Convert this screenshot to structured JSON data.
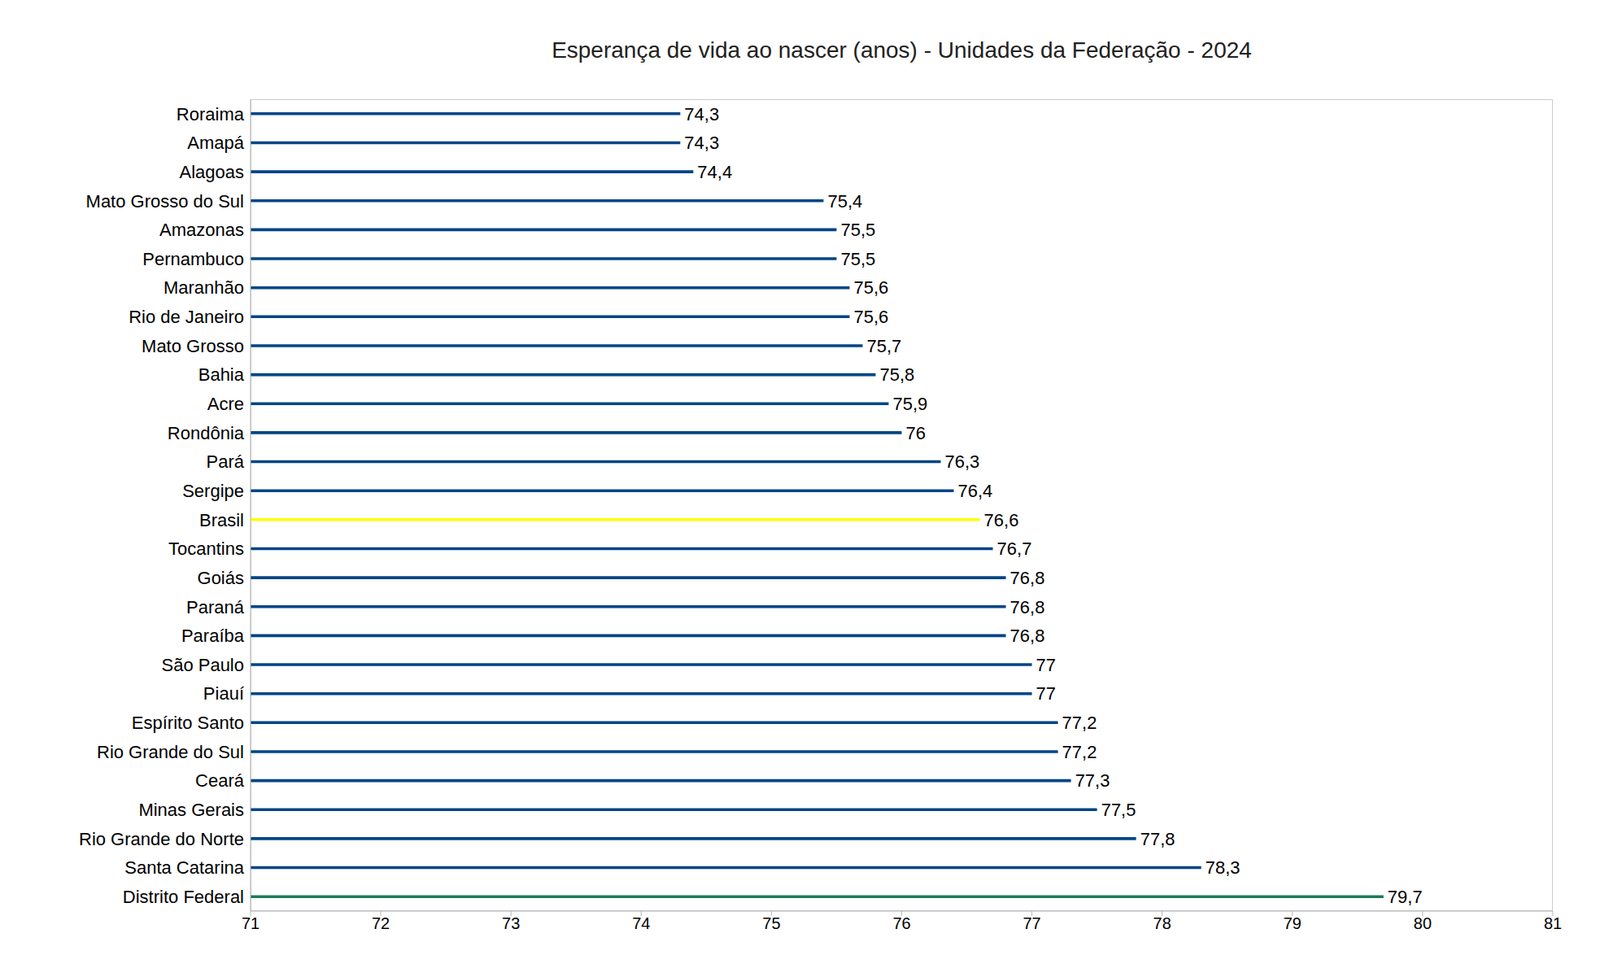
{
  "chart_data": {
    "type": "bar",
    "title": "Esperança de vida ao nascer (anos) - Unidades da Federação - 2024",
    "orientation": "horizontal",
    "categories": [
      "Roraima",
      "Amapá",
      "Alagoas",
      "Mato Grosso do Sul",
      "Amazonas",
      "Pernambuco",
      "Maranhão",
      "Rio de Janeiro",
      "Mato Grosso",
      "Bahia",
      "Acre",
      "Rondônia",
      "Pará",
      "Sergipe",
      "Brasil",
      "Tocantins",
      "Goiás",
      "Paraná",
      "Paraíba",
      "São Paulo",
      "Piauí",
      "Espírito Santo",
      "Rio Grande do Sul",
      "Ceará",
      "Minas Gerais",
      "Rio Grande do Norte",
      "Santa Catarina",
      "Distrito Federal"
    ],
    "values": [
      74.3,
      74.3,
      74.4,
      75.4,
      75.5,
      75.5,
      75.6,
      75.6,
      75.7,
      75.8,
      75.9,
      76,
      76.3,
      76.4,
      76.6,
      76.7,
      76.8,
      76.8,
      76.8,
      77,
      77,
      77.2,
      77.2,
      77.3,
      77.5,
      77.8,
      78.3,
      79.7
    ],
    "value_labels": [
      "74,3",
      "74,3",
      "74,4",
      "75,4",
      "75,5",
      "75,5",
      "75,6",
      "75,6",
      "75,7",
      "75,8",
      "75,9",
      "76",
      "76,3",
      "76,4",
      "76,6",
      "76,7",
      "76,8",
      "76,8",
      "76,8",
      "77",
      "77",
      "77,2",
      "77,2",
      "77,3",
      "77,5",
      "77,8",
      "78,3",
      "79,7"
    ],
    "colors": [
      "#004586",
      "#004586",
      "#004586",
      "#004586",
      "#004586",
      "#004586",
      "#004586",
      "#004586",
      "#004586",
      "#004586",
      "#004586",
      "#004586",
      "#004586",
      "#004586",
      "#ffff00",
      "#004586",
      "#004586",
      "#004586",
      "#004586",
      "#004586",
      "#004586",
      "#004586",
      "#004586",
      "#004586",
      "#004586",
      "#004586",
      "#004586",
      "#1b7a5a"
    ],
    "xlim": [
      71,
      81
    ],
    "xticks": [
      71,
      72,
      73,
      74,
      75,
      76,
      77,
      78,
      79,
      80,
      81
    ],
    "grid": false,
    "data_labels": true
  }
}
